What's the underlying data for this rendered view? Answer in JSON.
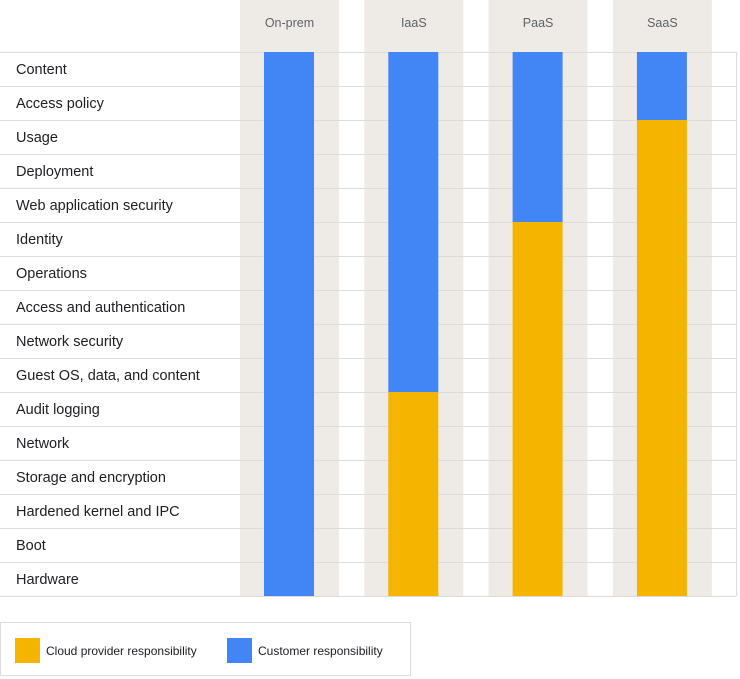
{
  "chart_data": {
    "type": "bar",
    "orientation": "vertical-stacked",
    "categories": [
      "On-prem",
      "IaaS",
      "PaaS",
      "SaaS"
    ],
    "rows": [
      "Content",
      "Access policy",
      "Usage",
      "Deployment",
      "Web application security",
      "Identity",
      "Operations",
      "Access and authentication",
      "Network security",
      "Guest OS, data, and content",
      "Audit logging",
      "Network",
      "Storage and encryption",
      "Hardened kernel and IPC",
      "Boot",
      "Hardware"
    ],
    "series": [
      {
        "name": "Cloud provider responsibility",
        "color": "#f4b400",
        "values": [
          0,
          6,
          11,
          14
        ]
      },
      {
        "name": "Customer responsibility",
        "color": "#4285f4",
        "values": [
          16,
          10,
          5,
          2
        ]
      }
    ],
    "column_background": "#eeeae6",
    "legend": {
      "placement": "bottom-left",
      "items": [
        {
          "label": "Cloud provider responsibility",
          "color": "#f4b400"
        },
        {
          "label": "Customer responsibility",
          "color": "#4285f4"
        }
      ]
    },
    "grid": true
  }
}
